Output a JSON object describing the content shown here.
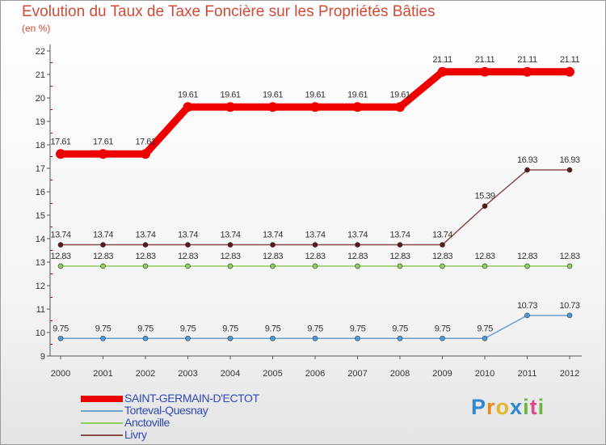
{
  "header": {
    "title": "Evolution du Taux de Taxe Foncière sur les Propriétés Bâties",
    "unit": "(en %)"
  },
  "brand": {
    "letters": [
      "P",
      "r",
      "o",
      "x",
      "i",
      "t",
      "i"
    ],
    "letter_colors": [
      "#2f87d0",
      "#e58a1f",
      "#e4b72a",
      "#2f87d0",
      "#6cb43f",
      "#d64a8e",
      "#6cb43f"
    ]
  },
  "chart_data": {
    "type": "line",
    "title": "Evolution du Taux de Taxe Foncière sur les Propriétés Bâties",
    "ylabel": "(en %)",
    "xlabel": "",
    "x": [
      "2000",
      "2001",
      "2002",
      "2003",
      "2004",
      "2005",
      "2006",
      "2007",
      "2008",
      "2009",
      "2010",
      "2011",
      "2012"
    ],
    "ylim": [
      9,
      22
    ],
    "yticks": [
      "9",
      "10",
      "11",
      "12",
      "13",
      "14",
      "15",
      "16",
      "17",
      "18",
      "19",
      "20",
      "21",
      "22"
    ],
    "grid": false,
    "legend_position": "bottom-left",
    "series": [
      {
        "name": "SAINT-GERMAIN-D'ECTOT",
        "color": "#ee0000",
        "emphasis": true,
        "values": [
          17.61,
          17.61,
          17.61,
          19.61,
          19.61,
          19.61,
          19.61,
          19.61,
          19.61,
          21.11,
          21.11,
          21.11,
          21.11
        ],
        "labels": [
          "17.61",
          "17.61",
          "17.61",
          "19.61",
          "19.61",
          "19.61",
          "19.61",
          "19.61",
          "19.61",
          "21.11",
          "21.11",
          "21.11",
          "21.11"
        ]
      },
      {
        "name": "Torteval-Quesnay",
        "color": "#6a9fce",
        "marker_fill": "#4b9de0",
        "values": [
          9.75,
          9.75,
          9.75,
          9.75,
          9.75,
          9.75,
          9.75,
          9.75,
          9.75,
          9.75,
          9.75,
          10.73,
          10.73
        ],
        "labels": [
          "9.75",
          "9.75",
          "9.75",
          "9.75",
          "9.75",
          "9.75",
          "9.75",
          "9.75",
          "9.75",
          "9.75",
          "9.75",
          "10.73",
          "10.73"
        ]
      },
      {
        "name": "Anctoville",
        "color": "#8fce5a",
        "marker_fill": "#8fce5a",
        "values": [
          12.83,
          12.83,
          12.83,
          12.83,
          12.83,
          12.83,
          12.83,
          12.83,
          12.83,
          12.83,
          12.83,
          12.83,
          12.83
        ],
        "labels": [
          "12.83",
          "12.83",
          "12.83",
          "12.83",
          "12.83",
          "12.83",
          "12.83",
          "12.83",
          "12.83",
          "12.83",
          "12.83",
          "12.83",
          "12.83"
        ]
      },
      {
        "name": "Livry",
        "color": "#8b4a4a",
        "marker_fill": "#5a1a1a",
        "values": [
          13.74,
          13.74,
          13.74,
          13.74,
          13.74,
          13.74,
          13.74,
          13.74,
          13.74,
          13.74,
          15.39,
          16.93,
          16.93
        ],
        "labels": [
          "13.74",
          "13.74",
          "13.74",
          "13.74",
          "13.74",
          "13.74",
          "13.74",
          "13.74",
          "13.74",
          "13.74",
          "15.39",
          "16.93",
          "16.93"
        ]
      }
    ]
  }
}
